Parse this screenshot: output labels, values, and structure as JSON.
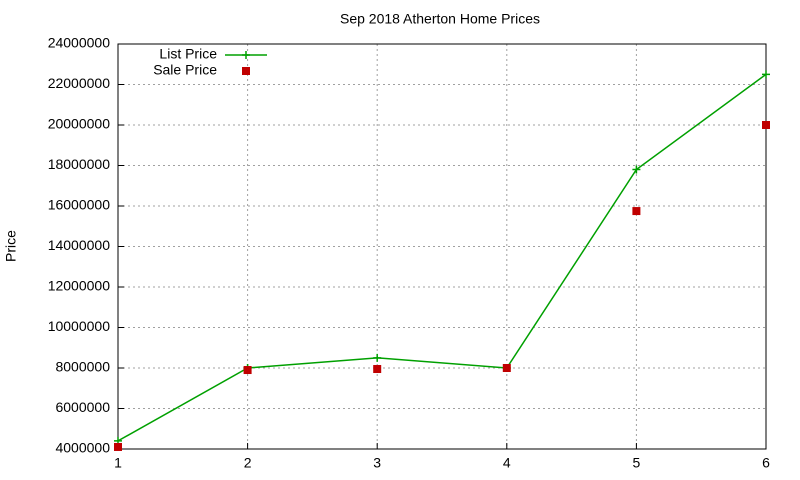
{
  "chart_data": {
    "type": "line",
    "title": "Sep 2018 Atherton Home Prices",
    "y_label": "Price",
    "x": [
      1,
      2,
      3,
      4,
      5,
      6
    ],
    "series": [
      {
        "name": "List Price",
        "color": "#00a000",
        "style": "linespoints",
        "marker": "plus",
        "values": [
          4400000,
          8000000,
          8500000,
          8000000,
          17800000,
          22500000
        ]
      },
      {
        "name": "Sale Price",
        "color": "#c00000",
        "style": "points",
        "marker": "square",
        "values": [
          4100000,
          7900000,
          7950000,
          8000000,
          15750000,
          20000000
        ]
      }
    ],
    "xlim": [
      1,
      6
    ],
    "xticks": [
      1,
      2,
      3,
      4,
      5,
      6
    ],
    "ylim": [
      4000000,
      24000000
    ],
    "yticks": [
      4000000,
      6000000,
      8000000,
      10000000,
      12000000,
      14000000,
      16000000,
      18000000,
      20000000,
      22000000,
      24000000
    ],
    "grid": true,
    "legend": "top-left"
  }
}
